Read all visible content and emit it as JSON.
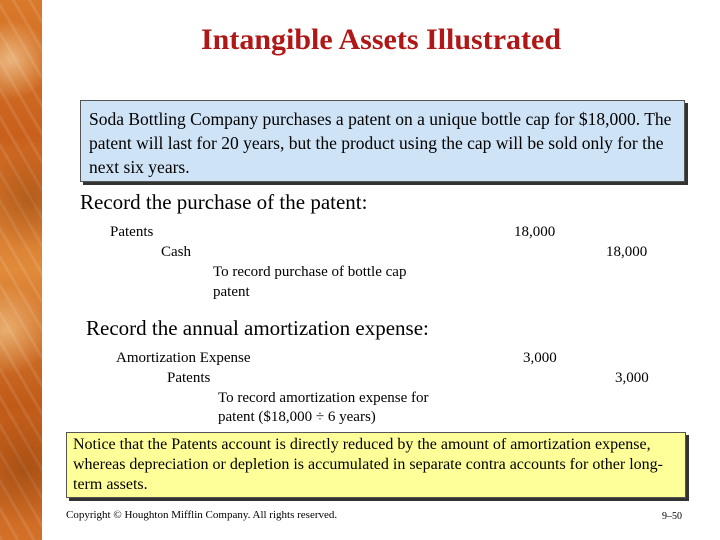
{
  "title": "Intangible Assets Illustrated",
  "scenario": "Soda Bottling Company purchases a patent on a unique bottle cap for $18,000. The patent will last for 20 years, but the product using the cap will be sold only for the next six years.",
  "purchase": {
    "heading": "Record the purchase of the patent:",
    "debit_account": "Patents",
    "debit_amount": "18,000",
    "credit_account": "Cash",
    "credit_amount": "18,000",
    "memo_line1": "To record purchase of bottle cap",
    "memo_line2": "patent"
  },
  "amortization": {
    "heading": "Record the annual amortization expense:",
    "debit_account": "Amortization Expense",
    "debit_amount": "3,000",
    "credit_account": "Patents",
    "credit_amount": "3,000",
    "memo_line1": "To record amortization expense for",
    "memo_line2": "patent ($18,000 ÷ 6 years)"
  },
  "note": "Notice that the Patents account is directly reduced by the amount of amortization expense, whereas depreciation or depletion is accumulated in separate contra accounts for other long-term assets.",
  "footer": {
    "copyright": "Copyright © Houghton Mifflin Company. All rights reserved.",
    "page": "9–50"
  },
  "colors": {
    "title": "#b01818",
    "scenario_box": "#cfe3f6",
    "note_box": "#ffff99",
    "side_band": "#d9792a"
  }
}
